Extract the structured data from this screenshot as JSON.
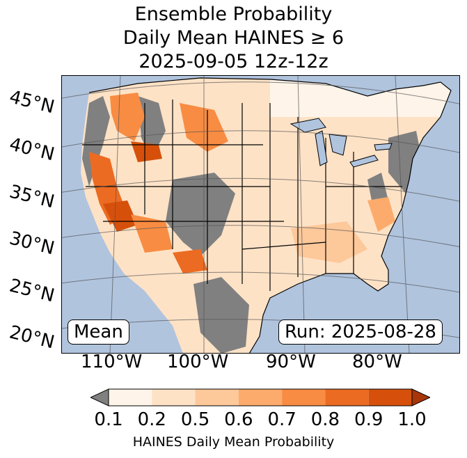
{
  "title": {
    "line1": "Ensemble Probability",
    "line2": "Daily Mean HAINES ≥ 6",
    "line3": "2025-09-05 12z-12z"
  },
  "map": {
    "latitude_labels": [
      "45°N",
      "40°N",
      "35°N",
      "30°N",
      "25°N",
      "20°N"
    ],
    "longitude_labels": [
      "110°W",
      "100°W",
      "90°W",
      "80°W"
    ],
    "stat_box": "Mean",
    "run_box": "Run: 2025-08-28",
    "colors": {
      "ocean": "#b0c4de",
      "missing": "#808080",
      "border": "#000000"
    }
  },
  "colorbar": {
    "label": "HAINES Daily Mean Probability",
    "ticks": [
      "0.1",
      "0.2",
      "0.5",
      "0.6",
      "0.7",
      "0.8",
      "0.9",
      "1.0"
    ],
    "under_color": "#808080",
    "colors": [
      "#fff4e9",
      "#fee2c6",
      "#fdc89a",
      "#fdab6c",
      "#f88c42",
      "#ec6b22",
      "#d6500b"
    ],
    "over_color": "#a83608"
  }
}
